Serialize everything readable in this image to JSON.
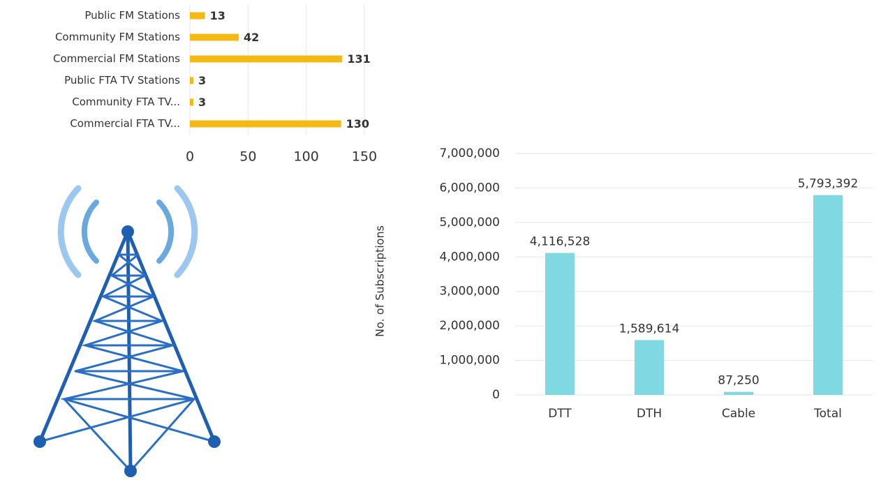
{
  "chart_data": [
    {
      "type": "bar",
      "horizontal": true,
      "categories": [
        "Public FM Stations",
        "Community FM Stations",
        "Commercial FM Stations",
        "Public FTA TV Stations",
        "Community FTA TV...",
        "Commercial FTA TV..."
      ],
      "values": [
        13,
        42,
        131,
        3,
        3,
        130
      ],
      "color": "#f5b914",
      "xlim": [
        0,
        150
      ],
      "xticks": [
        0,
        50,
        100,
        150
      ],
      "grid": true
    },
    {
      "type": "bar",
      "horizontal": false,
      "categories": [
        "DTT",
        "DTH",
        "Cable",
        "Total"
      ],
      "values": [
        4116528,
        1589614,
        87250,
        5793392
      ],
      "value_labels": [
        "4,116,528",
        "1,589,614",
        "87,250",
        "5,793,392"
      ],
      "color": "#7fd8e2",
      "ylabel": "No. of Subscriptions",
      "ylim": [
        0,
        7000000
      ],
      "yticks": [
        0,
        {
          "value": 1000000,
          "label": "1,000,000"
        },
        {
          "value": 2000000,
          "label": "2,000,000"
        },
        {
          "value": 3000000,
          "label": "3,000,000"
        },
        {
          "value": 4000000,
          "label": "4,000,000"
        },
        {
          "value": 5000000,
          "label": "5,000,000"
        },
        {
          "value": 6000000,
          "label": "6,000,000"
        },
        {
          "value": 7000000,
          "label": "7,000,000"
        }
      ],
      "grid": true
    }
  ]
}
